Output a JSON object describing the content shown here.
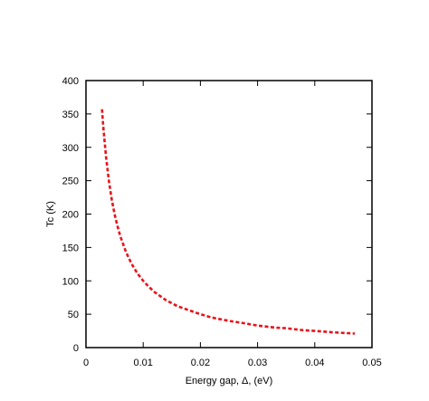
{
  "chart_data": {
    "type": "line",
    "title": "",
    "xlabel": "Energy gap, Δ, (eV)",
    "ylabel": "Tc (K)",
    "xlim": [
      0,
      0.05
    ],
    "ylim": [
      0,
      400
    ],
    "xticks": [
      0,
      0.01,
      0.02,
      0.03,
      0.04,
      0.05
    ],
    "xtick_labels": [
      "0",
      "0.01",
      "0.02",
      "0.03",
      "0.04",
      "0.05"
    ],
    "yticks": [
      0,
      50,
      100,
      150,
      200,
      250,
      300,
      350,
      400
    ],
    "ytick_labels": [
      "0",
      "50",
      "100",
      "150",
      "200",
      "250",
      "300",
      "350",
      "400"
    ],
    "grid": false,
    "legend": "none",
    "series": [
      {
        "style": "dashed",
        "color": "#e8141b",
        "x": [
          0.0028,
          0.003,
          0.0035,
          0.004,
          0.0045,
          0.005,
          0.0055,
          0.006,
          0.007,
          0.008,
          0.009,
          0.01,
          0.011,
          0.012,
          0.014,
          0.016,
          0.018,
          0.02,
          0.022,
          0.025,
          0.028,
          0.03,
          0.033,
          0.035,
          0.038,
          0.04,
          0.043,
          0.045,
          0.047
        ],
        "y": [
          357,
          333,
          286,
          250,
          222,
          200,
          182,
          167,
          143,
          125,
          111,
          100,
          91,
          83,
          71,
          62,
          56,
          50,
          45,
          40,
          36,
          33,
          30,
          29,
          26,
          25,
          23,
          22,
          21
        ]
      }
    ]
  }
}
